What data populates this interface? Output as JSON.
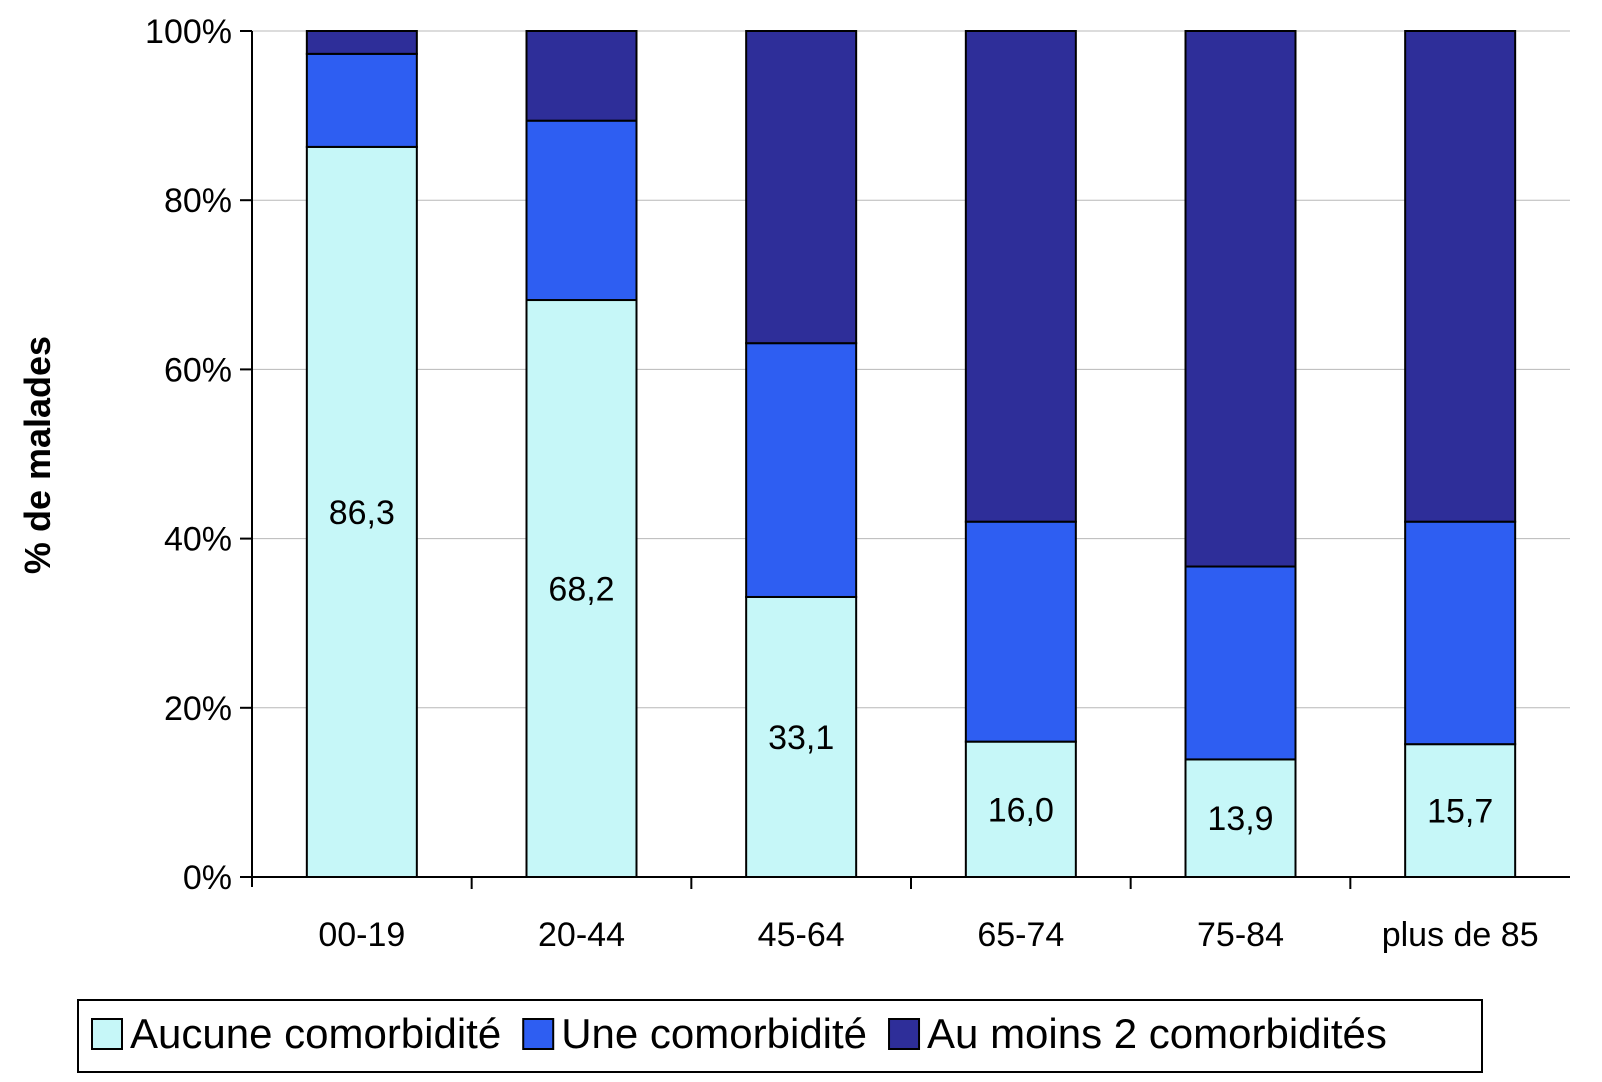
{
  "chart_data": {
    "type": "bar",
    "stacked": true,
    "percent_stacked": true,
    "categories": [
      "00-19",
      "20-44",
      "45-64",
      "65-74",
      "75-84",
      "plus de 85"
    ],
    "series": [
      {
        "name": "Aucune comorbidité",
        "color": "#c6f7f8",
        "values": [
          86.3,
          68.2,
          33.1,
          16.0,
          13.9,
          15.7
        ]
      },
      {
        "name": "Une comorbidité",
        "color": "#2e5ef2",
        "values": [
          11.0,
          21.2,
          30.0,
          26.0,
          22.8,
          26.3
        ]
      },
      {
        "name": "Au moins 2 comorbidités",
        "color": "#2e2e99",
        "values": [
          2.7,
          10.6,
          36.9,
          58.0,
          63.3,
          58.0
        ]
      }
    ],
    "data_labels": [
      "86,3",
      "68,2",
      "33,1",
      "16,0",
      "13,9",
      "15,7"
    ],
    "ylabel": "% de malades",
    "xlabel": "",
    "ylim": [
      0,
      100
    ],
    "yticks": [
      "0%",
      "20%",
      "40%",
      "60%",
      "80%",
      "100%"
    ],
    "grid": true,
    "legend_position": "bottom"
  }
}
